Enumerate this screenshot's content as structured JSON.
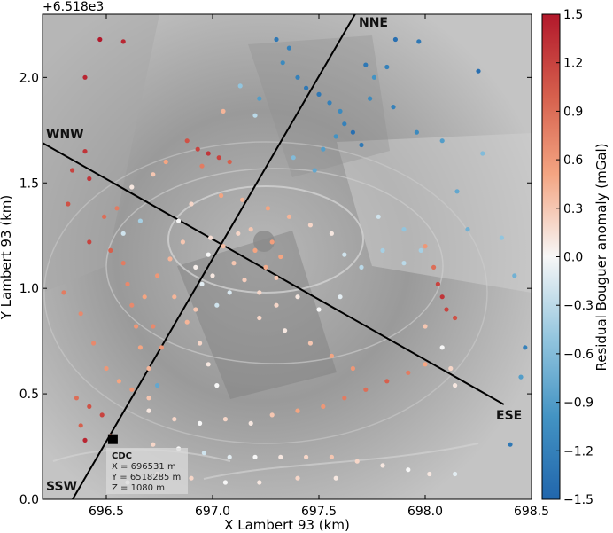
{
  "chart_data": {
    "type": "scatter",
    "xlabel": "X Lambert 93 (km)",
    "ylabel": "Y Lambert 93 (km)",
    "y_offset_label": "+6.518e3",
    "xlim": [
      696.2,
      698.5
    ],
    "ylim": [
      0.0,
      2.3
    ],
    "x_ticks": [
      696.5,
      697.0,
      697.5,
      698.0,
      698.5
    ],
    "x_tick_labels": [
      "696.5",
      "697.0",
      "697.5",
      "698.0",
      "698.5"
    ],
    "y_ticks": [
      0.0,
      0.5,
      1.0,
      1.5,
      2.0
    ],
    "y_tick_labels": [
      "0.0",
      "0.5",
      "1.0",
      "1.5",
      "2.0"
    ],
    "grid": false,
    "colorbar": {
      "label": "Residual Bouguer anomaly (mGal)",
      "min": -1.5,
      "max": 1.5,
      "ticks": [
        1.5,
        1.2,
        0.9,
        0.6,
        0.3,
        0.0,
        -0.3,
        -0.6,
        -0.9,
        -1.2,
        -1.5
      ],
      "tick_labels": [
        "1.5",
        "1.2",
        "0.9",
        "0.6",
        "0.3",
        "0.0",
        "−0.3",
        "−0.6",
        "−0.9",
        "−1.2",
        "−1.5"
      ],
      "colormap": "RdBu_r",
      "colors": {
        "low": "#2166ac",
        "mid": "#f7f7f7",
        "high": "#b2182b"
      }
    },
    "profiles": [
      {
        "label": "NNE",
        "from": [
          696.33,
          -0.02
        ],
        "to": [
          697.67,
          2.3
        ]
      },
      {
        "label": "SSW",
        "from": [
          696.33,
          -0.02
        ],
        "to": [
          697.67,
          2.3
        ]
      },
      {
        "label": "WNW",
        "from": [
          696.2,
          1.69
        ],
        "to": [
          698.37,
          0.45
        ]
      },
      {
        "label": "ESE",
        "from": [
          696.2,
          1.69
        ],
        "to": [
          698.37,
          0.45
        ]
      }
    ],
    "station": {
      "x": 696.531,
      "y": 0.285,
      "name": "CDC",
      "lines": [
        "X = 696531 m",
        "Y = 6518285 m",
        "Z = 1080 m"
      ]
    },
    "points": [
      {
        "x": 697.1,
        "y": 1.12,
        "v": 0.3
      },
      {
        "x": 697.0,
        "y": 1.06,
        "v": 0.1
      },
      {
        "x": 697.2,
        "y": 1.18,
        "v": 0.5
      },
      {
        "x": 697.05,
        "y": 1.2,
        "v": 0.35
      },
      {
        "x": 696.98,
        "y": 1.16,
        "v": 0.0
      },
      {
        "x": 697.15,
        "y": 1.04,
        "v": 0.25
      },
      {
        "x": 697.08,
        "y": 0.98,
        "v": -0.15
      },
      {
        "x": 697.25,
        "y": 1.1,
        "v": 0.45
      },
      {
        "x": 697.3,
        "y": 1.05,
        "v": 0.3
      },
      {
        "x": 696.95,
        "y": 1.02,
        "v": -0.1
      },
      {
        "x": 697.12,
        "y": 1.26,
        "v": 0.2
      },
      {
        "x": 697.22,
        "y": 0.98,
        "v": 0.2
      },
      {
        "x": 697.02,
        "y": 0.92,
        "v": -0.2
      },
      {
        "x": 696.92,
        "y": 1.1,
        "v": 0.05
      },
      {
        "x": 697.32,
        "y": 1.15,
        "v": 0.5
      },
      {
        "x": 697.18,
        "y": 1.28,
        "v": 0.3
      },
      {
        "x": 696.99,
        "y": 1.24,
        "v": 0.15
      },
      {
        "x": 697.28,
        "y": 1.22,
        "v": 0.55
      },
      {
        "x": 697.3,
        "y": 2.18,
        "v": -1.3
      },
      {
        "x": 697.36,
        "y": 2.14,
        "v": -1.2
      },
      {
        "x": 697.33,
        "y": 2.07,
        "v": -1.1
      },
      {
        "x": 697.4,
        "y": 2.0,
        "v": -1.2
      },
      {
        "x": 697.44,
        "y": 1.95,
        "v": -1.3
      },
      {
        "x": 697.5,
        "y": 1.92,
        "v": -1.3
      },
      {
        "x": 697.55,
        "y": 1.88,
        "v": -1.2
      },
      {
        "x": 697.6,
        "y": 1.84,
        "v": -1.1
      },
      {
        "x": 697.62,
        "y": 1.78,
        "v": -1.2
      },
      {
        "x": 697.66,
        "y": 1.74,
        "v": -1.4
      },
      {
        "x": 697.58,
        "y": 1.72,
        "v": -1.0
      },
      {
        "x": 697.52,
        "y": 1.66,
        "v": -0.9
      },
      {
        "x": 697.7,
        "y": 1.68,
        "v": -1.3
      },
      {
        "x": 697.74,
        "y": 1.9,
        "v": -1.1
      },
      {
        "x": 697.76,
        "y": 2.0,
        "v": -1.0
      },
      {
        "x": 697.72,
        "y": 2.06,
        "v": -1.3
      },
      {
        "x": 697.82,
        "y": 2.05,
        "v": -1.2
      },
      {
        "x": 697.86,
        "y": 2.18,
        "v": -1.4
      },
      {
        "x": 697.97,
        "y": 2.17,
        "v": -1.3
      },
      {
        "x": 697.85,
        "y": 1.86,
        "v": -1.2
      },
      {
        "x": 697.96,
        "y": 1.74,
        "v": -1.1
      },
      {
        "x": 698.08,
        "y": 1.7,
        "v": -0.9
      },
      {
        "x": 698.15,
        "y": 1.46,
        "v": -0.8
      },
      {
        "x": 698.2,
        "y": 1.28,
        "v": -0.7
      },
      {
        "x": 698.27,
        "y": 1.64,
        "v": -0.6
      },
      {
        "x": 698.36,
        "y": 1.24,
        "v": -0.5
      },
      {
        "x": 698.42,
        "y": 1.06,
        "v": -0.7
      },
      {
        "x": 698.47,
        "y": 0.72,
        "v": -1.2
      },
      {
        "x": 698.45,
        "y": 0.58,
        "v": -0.9
      },
      {
        "x": 698.4,
        "y": 0.26,
        "v": -1.3
      },
      {
        "x": 698.25,
        "y": 2.03,
        "v": -1.4
      },
      {
        "x": 697.48,
        "y": 1.56,
        "v": -0.8
      },
      {
        "x": 697.38,
        "y": 1.62,
        "v": -0.6
      },
      {
        "x": 697.22,
        "y": 1.9,
        "v": -0.9
      },
      {
        "x": 697.13,
        "y": 1.96,
        "v": -0.5
      },
      {
        "x": 697.2,
        "y": 1.82,
        "v": -0.3
      },
      {
        "x": 697.05,
        "y": 1.84,
        "v": 0.4
      },
      {
        "x": 696.4,
        "y": 2.0,
        "v": 1.4
      },
      {
        "x": 696.47,
        "y": 2.18,
        "v": 1.5
      },
      {
        "x": 696.58,
        "y": 2.17,
        "v": 1.4
      },
      {
        "x": 696.4,
        "y": 1.65,
        "v": 1.3
      },
      {
        "x": 696.34,
        "y": 1.56,
        "v": 1.2
      },
      {
        "x": 696.42,
        "y": 1.52,
        "v": 1.3
      },
      {
        "x": 696.32,
        "y": 1.4,
        "v": 1.1
      },
      {
        "x": 696.42,
        "y": 1.22,
        "v": 1.2
      },
      {
        "x": 696.49,
        "y": 1.34,
        "v": 0.9
      },
      {
        "x": 696.55,
        "y": 1.38,
        "v": 0.8
      },
      {
        "x": 696.52,
        "y": 1.18,
        "v": 1.0
      },
      {
        "x": 696.3,
        "y": 0.98,
        "v": 0.8
      },
      {
        "x": 696.38,
        "y": 0.88,
        "v": 0.7
      },
      {
        "x": 696.44,
        "y": 0.74,
        "v": 0.7
      },
      {
        "x": 696.5,
        "y": 0.62,
        "v": 0.6
      },
      {
        "x": 696.36,
        "y": 0.48,
        "v": 0.9
      },
      {
        "x": 696.42,
        "y": 0.44,
        "v": 1.1
      },
      {
        "x": 696.48,
        "y": 0.4,
        "v": 1.2
      },
      {
        "x": 696.38,
        "y": 0.35,
        "v": 1.0
      },
      {
        "x": 696.4,
        "y": 0.28,
        "v": 1.4
      },
      {
        "x": 696.52,
        "y": 0.3,
        "v": 0.8
      },
      {
        "x": 696.88,
        "y": 1.7,
        "v": 1.1
      },
      {
        "x": 696.93,
        "y": 1.66,
        "v": 1.2
      },
      {
        "x": 696.98,
        "y": 1.64,
        "v": 1.3
      },
      {
        "x": 697.03,
        "y": 1.62,
        "v": 1.2
      },
      {
        "x": 697.08,
        "y": 1.6,
        "v": 1.0
      },
      {
        "x": 696.95,
        "y": 1.58,
        "v": 0.8
      },
      {
        "x": 696.78,
        "y": 1.6,
        "v": 0.5
      },
      {
        "x": 696.72,
        "y": 1.54,
        "v": 0.3
      },
      {
        "x": 696.62,
        "y": 1.48,
        "v": 0.1
      },
      {
        "x": 696.66,
        "y": 1.32,
        "v": -0.4
      },
      {
        "x": 696.58,
        "y": 1.26,
        "v": -0.2
      },
      {
        "x": 696.58,
        "y": 1.12,
        "v": 0.8
      },
      {
        "x": 696.6,
        "y": 1.02,
        "v": 0.7
      },
      {
        "x": 696.62,
        "y": 0.92,
        "v": 0.7
      },
      {
        "x": 696.64,
        "y": 0.82,
        "v": 0.6
      },
      {
        "x": 696.66,
        "y": 0.72,
        "v": 0.5
      },
      {
        "x": 696.7,
        "y": 0.62,
        "v": 0.4
      },
      {
        "x": 696.74,
        "y": 0.54,
        "v": -0.8
      },
      {
        "x": 696.62,
        "y": 0.52,
        "v": 0.6
      },
      {
        "x": 696.56,
        "y": 0.56,
        "v": 0.5
      },
      {
        "x": 696.7,
        "y": 0.48,
        "v": 0.3
      },
      {
        "x": 696.76,
        "y": 0.72,
        "v": 0.6
      },
      {
        "x": 696.72,
        "y": 0.82,
        "v": 0.7
      },
      {
        "x": 696.68,
        "y": 0.96,
        "v": 0.5
      },
      {
        "x": 696.74,
        "y": 1.06,
        "v": 0.6
      },
      {
        "x": 696.8,
        "y": 1.14,
        "v": 0.4
      },
      {
        "x": 696.86,
        "y": 1.22,
        "v": 0.3
      },
      {
        "x": 696.84,
        "y": 1.32,
        "v": 0.0
      },
      {
        "x": 696.9,
        "y": 1.4,
        "v": 0.2
      },
      {
        "x": 697.04,
        "y": 1.44,
        "v": 0.5
      },
      {
        "x": 697.14,
        "y": 1.42,
        "v": 0.4
      },
      {
        "x": 697.26,
        "y": 1.38,
        "v": 0.5
      },
      {
        "x": 697.36,
        "y": 1.34,
        "v": 0.4
      },
      {
        "x": 697.46,
        "y": 1.3,
        "v": 0.2
      },
      {
        "x": 697.56,
        "y": 1.26,
        "v": 0.1
      },
      {
        "x": 697.62,
        "y": 1.16,
        "v": -0.2
      },
      {
        "x": 697.7,
        "y": 1.1,
        "v": -0.3
      },
      {
        "x": 697.8,
        "y": 1.18,
        "v": -0.4
      },
      {
        "x": 697.9,
        "y": 1.12,
        "v": -0.3
      },
      {
        "x": 697.98,
        "y": 1.18,
        "v": -0.4
      },
      {
        "x": 697.9,
        "y": 1.28,
        "v": -0.5
      },
      {
        "x": 697.78,
        "y": 1.34,
        "v": -0.2
      },
      {
        "x": 698.06,
        "y": 1.02,
        "v": 1.2
      },
      {
        "x": 698.08,
        "y": 0.96,
        "v": 1.3
      },
      {
        "x": 698.1,
        "y": 0.9,
        "v": 1.2
      },
      {
        "x": 698.14,
        "y": 0.86,
        "v": 1.1
      },
      {
        "x": 698.04,
        "y": 1.1,
        "v": 0.9
      },
      {
        "x": 698.0,
        "y": 1.2,
        "v": 0.6
      },
      {
        "x": 698.0,
        "y": 0.82,
        "v": 0.3
      },
      {
        "x": 698.08,
        "y": 0.72,
        "v": 0.0
      },
      {
        "x": 698.12,
        "y": 0.62,
        "v": 0.2
      },
      {
        "x": 698.14,
        "y": 0.54,
        "v": 0.1
      },
      {
        "x": 696.7,
        "y": 0.42,
        "v": 0.1
      },
      {
        "x": 696.82,
        "y": 0.38,
        "v": 0.2
      },
      {
        "x": 696.94,
        "y": 0.36,
        "v": 0.0
      },
      {
        "x": 697.06,
        "y": 0.38,
        "v": 0.2
      },
      {
        "x": 697.18,
        "y": 0.36,
        "v": 0.1
      },
      {
        "x": 697.28,
        "y": 0.4,
        "v": 0.3
      },
      {
        "x": 697.4,
        "y": 0.42,
        "v": 0.5
      },
      {
        "x": 697.52,
        "y": 0.44,
        "v": 0.6
      },
      {
        "x": 697.62,
        "y": 0.48,
        "v": 0.8
      },
      {
        "x": 697.72,
        "y": 0.52,
        "v": 0.9
      },
      {
        "x": 697.82,
        "y": 0.56,
        "v": 1.0
      },
      {
        "x": 697.92,
        "y": 0.6,
        "v": 0.8
      },
      {
        "x": 698.0,
        "y": 0.64,
        "v": 0.5
      },
      {
        "x": 696.72,
        "y": 0.26,
        "v": 0.2
      },
      {
        "x": 696.84,
        "y": 0.24,
        "v": 0.0
      },
      {
        "x": 696.96,
        "y": 0.22,
        "v": -0.2
      },
      {
        "x": 697.08,
        "y": 0.2,
        "v": -0.1
      },
      {
        "x": 697.2,
        "y": 0.2,
        "v": 0.0
      },
      {
        "x": 697.32,
        "y": 0.2,
        "v": 0.1
      },
      {
        "x": 697.44,
        "y": 0.2,
        "v": 0.2
      },
      {
        "x": 697.56,
        "y": 0.2,
        "v": 0.3
      },
      {
        "x": 697.68,
        "y": 0.18,
        "v": 0.2
      },
      {
        "x": 697.8,
        "y": 0.16,
        "v": 0.1
      },
      {
        "x": 697.92,
        "y": 0.14,
        "v": 0.0
      },
      {
        "x": 698.02,
        "y": 0.12,
        "v": 0.1
      },
      {
        "x": 698.14,
        "y": 0.12,
        "v": -0.1
      },
      {
        "x": 696.6,
        "y": 0.08,
        "v": 0.0
      },
      {
        "x": 696.74,
        "y": 0.12,
        "v": 0.1
      },
      {
        "x": 696.9,
        "y": 0.1,
        "v": 0.2
      },
      {
        "x": 697.06,
        "y": 0.08,
        "v": 0.0
      },
      {
        "x": 697.22,
        "y": 0.08,
        "v": 0.1
      },
      {
        "x": 697.4,
        "y": 0.1,
        "v": 0.2
      },
      {
        "x": 697.58,
        "y": 0.1,
        "v": 0.1
      },
      {
        "x": 696.88,
        "y": 0.84,
        "v": 0.4
      },
      {
        "x": 696.94,
        "y": 0.74,
        "v": 0.2
      },
      {
        "x": 696.98,
        "y": 0.64,
        "v": 0.1
      },
      {
        "x": 697.02,
        "y": 0.54,
        "v": 0.0
      },
      {
        "x": 697.22,
        "y": 0.86,
        "v": 0.2
      },
      {
        "x": 697.34,
        "y": 0.8,
        "v": 0.1
      },
      {
        "x": 697.46,
        "y": 0.74,
        "v": 0.3
      },
      {
        "x": 697.56,
        "y": 0.68,
        "v": 0.5
      },
      {
        "x": 697.66,
        "y": 0.62,
        "v": 0.6
      },
      {
        "x": 697.5,
        "y": 0.9,
        "v": 0.0
      },
      {
        "x": 697.6,
        "y": 0.96,
        "v": -0.1
      },
      {
        "x": 697.4,
        "y": 0.96,
        "v": 0.1
      },
      {
        "x": 697.3,
        "y": 0.92,
        "v": 0.2
      },
      {
        "x": 696.92,
        "y": 0.9,
        "v": 0.3
      },
      {
        "x": 696.82,
        "y": 0.96,
        "v": 0.4
      }
    ]
  }
}
